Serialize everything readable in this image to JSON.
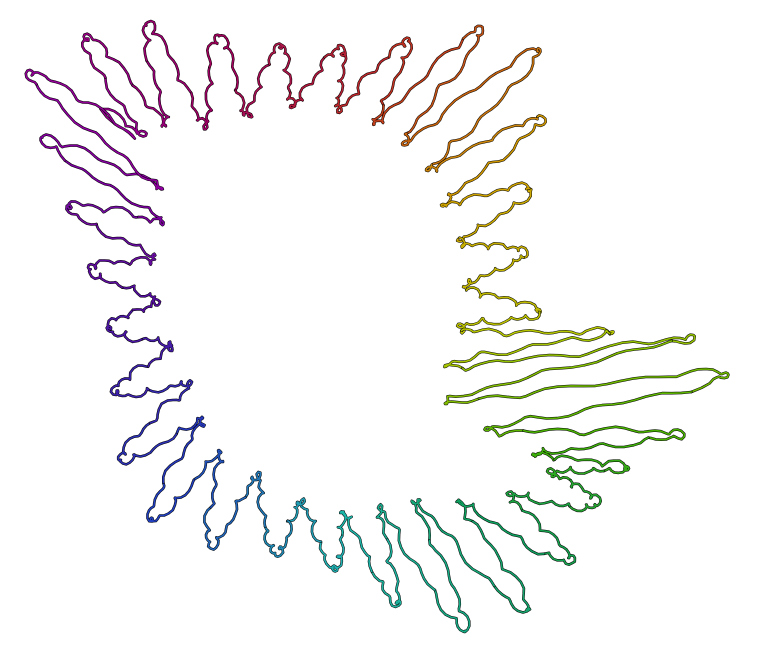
{
  "artwork": {
    "kind": "continuous-line-drawing",
    "shape": "bent loop with lobed, wiggly edges",
    "background": "#ffffff",
    "outline_color": "#000000",
    "gradient_stops": [
      "#a00060",
      "#c03020",
      "#d0a000",
      "#b8c800",
      "#40b000",
      "#10a060",
      "#20b8b0",
      "#2040c0",
      "#5010a0",
      "#9000a0",
      "#a00060"
    ]
  }
}
